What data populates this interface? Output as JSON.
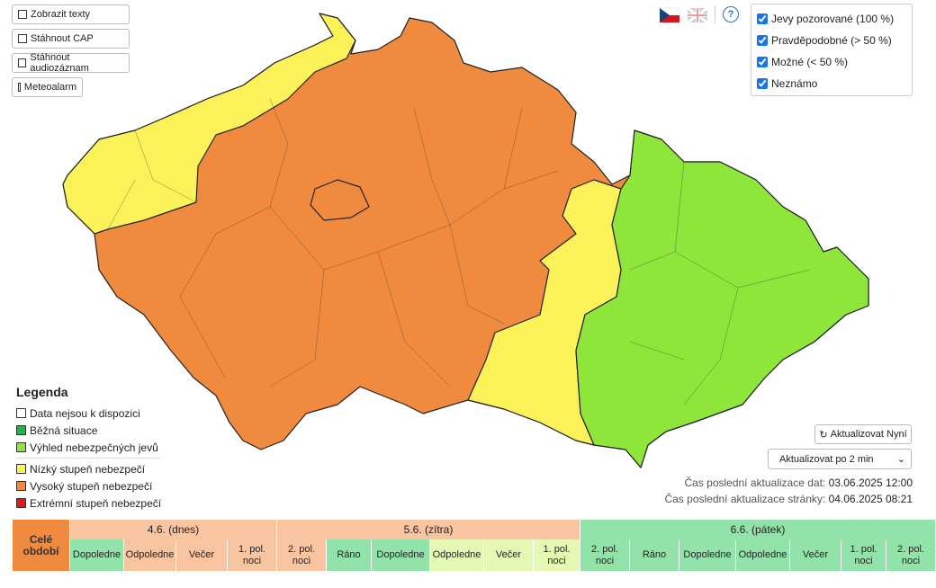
{
  "toolbar": {
    "buttons": [
      "Zobrazit texty",
      "Stáhnout CAP",
      "Stáhnout audiozáznam",
      "Meteoalarm"
    ]
  },
  "help": "?",
  "filters": [
    {
      "label": "Jevy pozorované (100 %)",
      "checked": true
    },
    {
      "label": "Pravděpodobné (> 50 %)",
      "checked": true
    },
    {
      "label": "Možné (< 50 %)",
      "checked": true
    },
    {
      "label": "Neznámo",
      "checked": true
    }
  ],
  "legend": {
    "title": "Legenda",
    "items": [
      "Data nejsou k dispozici",
      "Běžná situace",
      "Výhled nebezpečných jevů",
      "Nízký stupeň nebezpečí",
      "Vysoký stupeň nebezpečí",
      "Extrémní stupeň nebezpečí"
    ]
  },
  "refresh": {
    "button": "Aktualizovat Nyní",
    "interval": "Aktualizovat po 2 min"
  },
  "status": {
    "data_label": "Čas poslední aktualizace dat:",
    "data_time": "03.06.2025 12:00",
    "page_label": "Čas poslední aktualizace stránky:",
    "page_time": "04.06.2025 08:21"
  },
  "timeline": {
    "whole_period": "Celé období",
    "days": [
      {
        "label": "4.6. (dnes)",
        "periods": [
          "Dopoledne",
          "Odpoledne",
          "Večer",
          "1. pol. noci"
        ]
      },
      {
        "label": "5.6. (zítra)",
        "periods": [
          "2. pol. noci",
          "Ráno",
          "Dopoledne",
          "Odpoledne",
          "Večer",
          "1. pol. noci"
        ]
      },
      {
        "label": "6.6. (pátek)",
        "periods": [
          "2. pol. noci",
          "Ráno",
          "Dopoledne",
          "Odpoledne",
          "Večer",
          "1. pol. noci",
          "2. pol. noci"
        ]
      }
    ]
  }
}
